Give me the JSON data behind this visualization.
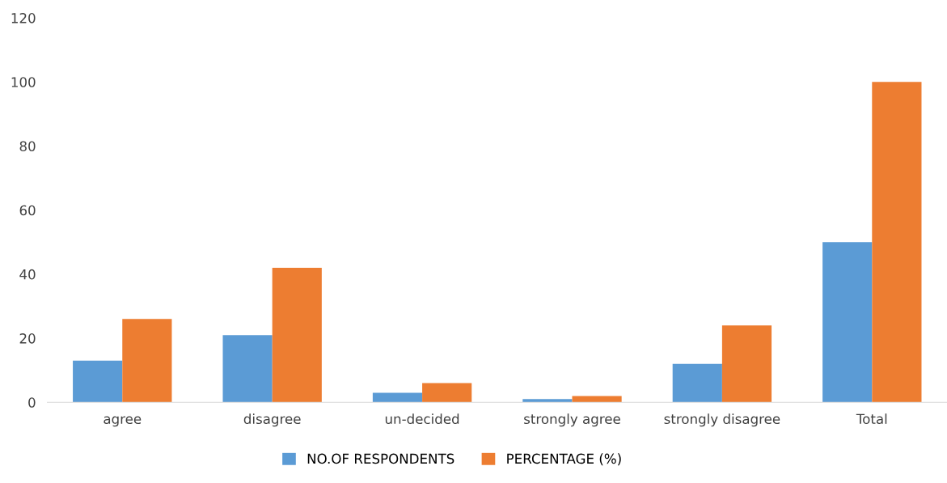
{
  "chart_data": {
    "type": "bar",
    "categories": [
      "agree",
      "disagree",
      "un-decided",
      "strongly agree",
      "strongly disagree",
      "Total"
    ],
    "series": [
      {
        "name": "NO.OF RESPONDENTS",
        "color": "#5b9bd5",
        "values": [
          13,
          21,
          3,
          1,
          12,
          50
        ]
      },
      {
        "name": "PERCENTAGE (%)",
        "color": "#ed7d31",
        "values": [
          26,
          42,
          6,
          2,
          24,
          100
        ]
      }
    ],
    "ylim": [
      0,
      120
    ],
    "yticks": [
      0,
      20,
      40,
      60,
      80,
      100,
      120
    ],
    "grid": false,
    "legend": "bottom"
  }
}
